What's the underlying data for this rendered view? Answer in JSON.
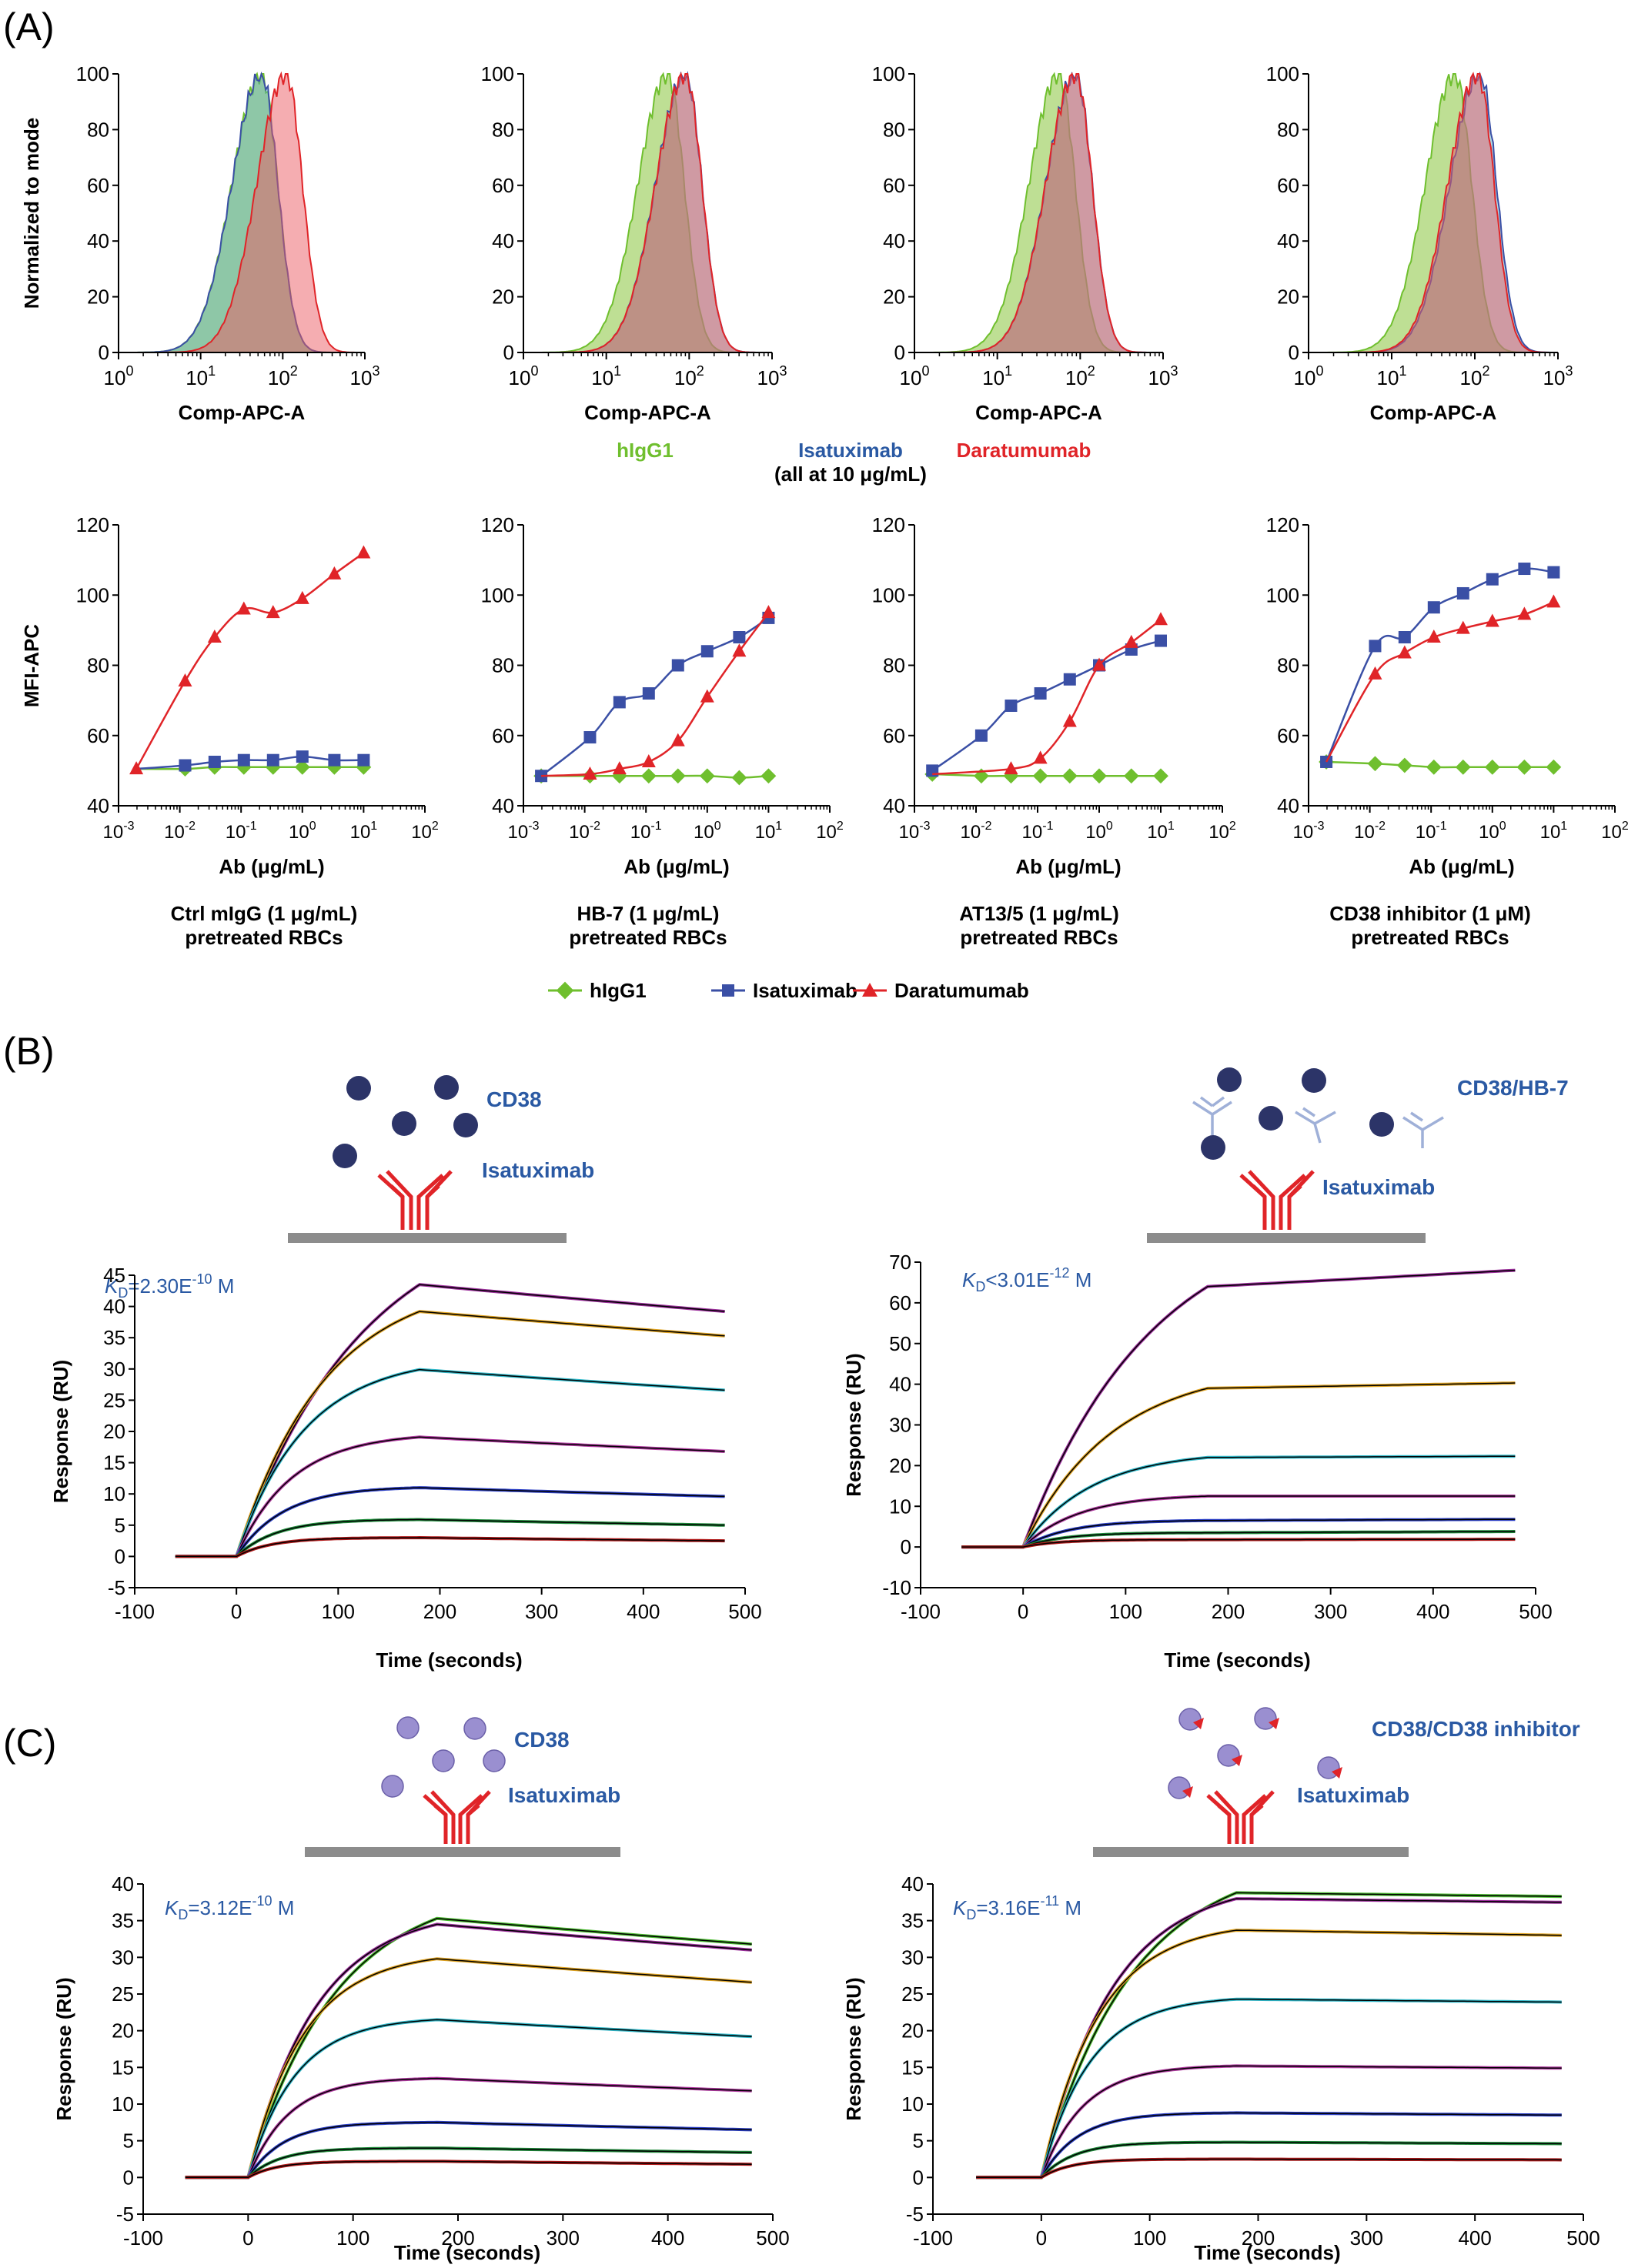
{
  "colors": {
    "hlgg1": "#6fbf2e",
    "isatuximab": "#3a4fa5",
    "daratumumab": "#e02428",
    "label_blue": "#2a59a3",
    "particle_dark": "#2c3468",
    "particle_light": "#9a8fd0",
    "antibody_light": "#9fb0d8",
    "surface": "#8c8c8c"
  },
  "panel_a": {
    "label": "(A)",
    "hist_ylabel": "Normalized to mode",
    "hist_xlabel": "Comp-APC-A",
    "hist_legend": {
      "hlgg1": "hIgG1",
      "isatuximab": "Isatuximab",
      "note": "(all at 10 μg/mL)",
      "daratumumab": "Daratumumab"
    },
    "dose_ylabel": "MFI-APC",
    "dose_xlabel": "Ab (μg/mL)",
    "captions": [
      [
        "Ctrl mIgG (1 μg/mL)",
        "pretreated RBCs"
      ],
      [
        "HB-7 (1 μg/mL)",
        "pretreated RBCs"
      ],
      [
        "AT13/5 (1 μg/mL)",
        "pretreated RBCs"
      ],
      [
        "CD38 inhibitor (1 μM)",
        "pretreated RBCs"
      ]
    ],
    "dose_legend": [
      "hIgG1",
      "Isatuximab",
      "Daratumumab"
    ]
  },
  "panel_b": {
    "label": "(B)",
    "left": {
      "particle_label": "CD38",
      "antibody_label": "Isatuximab",
      "kd_prefix": "K",
      "kd_sub": "D",
      "kd_text": "=2.30E",
      "kd_exp": "-10",
      "kd_unit": " M"
    },
    "right": {
      "particle_label": "CD38/HB-7",
      "antibody_label": "Isatuximab",
      "kd_prefix": "K",
      "kd_sub": "D",
      "kd_text": "<3.01E",
      "kd_exp": "-12",
      "kd_unit": " M"
    }
  },
  "panel_c": {
    "label": "(C)",
    "left": {
      "particle_label": "CD38",
      "antibody_label": "Isatuximab",
      "kd_prefix": "K",
      "kd_sub": "D",
      "kd_text": "=3.12E",
      "kd_exp": "-10",
      "kd_unit": " M"
    },
    "right": {
      "particle_label": "CD38/CD38 inhibitor",
      "antibody_label": "Isatuximab",
      "kd_prefix": "K",
      "kd_sub": "D",
      "kd_text": "=3.16E",
      "kd_exp": "-11",
      "kd_unit": " M"
    }
  },
  "spr_axis": {
    "ylabel": "Response (RU)",
    "xlabel": "Time (seconds)"
  },
  "chart_data": [
    {
      "type": "area",
      "id": "hist1",
      "xscale": "log",
      "xlim": [
        1,
        1000
      ],
      "ylim": [
        0,
        100
      ],
      "xticks": [
        1,
        10,
        100,
        1000
      ],
      "yticks": [
        0,
        20,
        40,
        60,
        80,
        100
      ],
      "ylabel": "Normalized to mode",
      "xlabel": "Comp-APC-A",
      "series": [
        {
          "name": "hIgG1",
          "peak": 55
        },
        {
          "name": "Isatuximab",
          "peak": 55
        },
        {
          "name": "Daratumumab",
          "peak": 110
        }
      ]
    },
    {
      "type": "area",
      "id": "hist2",
      "xscale": "log",
      "xlim": [
        1,
        1000
      ],
      "ylim": [
        0,
        100
      ],
      "xticks": [
        1,
        10,
        100,
        1000
      ],
      "yticks": [
        0,
        20,
        40,
        60,
        80,
        100
      ],
      "xlabel": "Comp-APC-A",
      "series": [
        {
          "name": "hIgG1",
          "peak": 55
        },
        {
          "name": "Isatuximab",
          "peak": 90
        },
        {
          "name": "Daratumumab",
          "peak": 90
        }
      ]
    },
    {
      "type": "area",
      "id": "hist3",
      "xscale": "log",
      "xlim": [
        1,
        1000
      ],
      "ylim": [
        0,
        100
      ],
      "xticks": [
        1,
        10,
        100,
        1000
      ],
      "yticks": [
        0,
        20,
        40,
        60,
        80,
        100
      ],
      "xlabel": "Comp-APC-A",
      "series": [
        {
          "name": "hIgG1",
          "peak": 55
        },
        {
          "name": "Isatuximab",
          "peak": 88
        },
        {
          "name": "Daratumumab",
          "peak": 88
        }
      ]
    },
    {
      "type": "area",
      "id": "hist4",
      "xscale": "log",
      "xlim": [
        1,
        1000
      ],
      "ylim": [
        0,
        100
      ],
      "xticks": [
        1,
        10,
        100,
        1000
      ],
      "yticks": [
        0,
        20,
        40,
        60,
        80,
        100
      ],
      "xlabel": "Comp-APC-A",
      "series": [
        {
          "name": "hIgG1",
          "peak": 58
        },
        {
          "name": "Isatuximab",
          "peak": 115
        },
        {
          "name": "Daratumumab",
          "peak": 108
        }
      ]
    },
    {
      "type": "scatter",
      "id": "dose1",
      "xscale": "log",
      "xlim": [
        0.001,
        100
      ],
      "ylim": [
        40,
        120
      ],
      "xticks": [
        0.001,
        0.01,
        0.1,
        1,
        10,
        100
      ],
      "yticks": [
        40,
        60,
        80,
        100,
        120
      ],
      "ylabel": "MFI-APC",
      "xlabel": "Ab (μg/mL)",
      "x": [
        0.00195,
        0.0122,
        0.037,
        0.111,
        0.333,
        1,
        3.33,
        10
      ],
      "series": [
        {
          "name": "hIgG1",
          "values": [
            null,
            50.5,
            51,
            51,
            51,
            51,
            51,
            51
          ]
        },
        {
          "name": "Isatuximab",
          "values": [
            null,
            51.5,
            52.5,
            53,
            53,
            54,
            53,
            53
          ]
        },
        {
          "name": "Daratumumab",
          "values": [
            50.5,
            75.5,
            88,
            96,
            95,
            99,
            106,
            112
          ]
        }
      ]
    },
    {
      "type": "scatter",
      "id": "dose2",
      "xscale": "log",
      "xlim": [
        0.001,
        100
      ],
      "ylim": [
        40,
        120
      ],
      "xticks": [
        0.001,
        0.01,
        0.1,
        1,
        10,
        100
      ],
      "yticks": [
        40,
        60,
        80,
        100,
        120
      ],
      "xlabel": "Ab (μg/mL)",
      "x": [
        0.00195,
        0.0122,
        0.037,
        0.111,
        0.333,
        1,
        3.33,
        10
      ],
      "series": [
        {
          "name": "hIgG1",
          "values": [
            48.5,
            48.5,
            48.5,
            48.5,
            48.5,
            48.5,
            48,
            48.5
          ]
        },
        {
          "name": "Isatuximab",
          "values": [
            48.5,
            59.5,
            69.5,
            72,
            80,
            84,
            88,
            93.5
          ]
        },
        {
          "name": "Daratumumab",
          "values": [
            null,
            49,
            50.5,
            52.5,
            58.5,
            71,
            84,
            95
          ]
        }
      ]
    },
    {
      "type": "scatter",
      "id": "dose3",
      "xscale": "log",
      "xlim": [
        0.001,
        100
      ],
      "ylim": [
        40,
        120
      ],
      "xticks": [
        0.001,
        0.01,
        0.1,
        1,
        10,
        100
      ],
      "yticks": [
        40,
        60,
        80,
        100,
        120
      ],
      "xlabel": "Ab (μg/mL)",
      "x": [
        0.00195,
        0.0122,
        0.037,
        0.111,
        0.333,
        1,
        3.33,
        10
      ],
      "series": [
        {
          "name": "hIgG1",
          "values": [
            49,
            48.5,
            48.5,
            48.5,
            48.5,
            48.5,
            48.5,
            48.5
          ]
        },
        {
          "name": "Isatuximab",
          "values": [
            50,
            60,
            68.5,
            72,
            76,
            80,
            84.5,
            87
          ]
        },
        {
          "name": "Daratumumab",
          "values": [
            null,
            null,
            50.5,
            53.5,
            64,
            80,
            86.5,
            93
          ]
        }
      ]
    },
    {
      "type": "scatter",
      "id": "dose4",
      "xscale": "log",
      "xlim": [
        0.001,
        100
      ],
      "ylim": [
        40,
        120
      ],
      "xticks": [
        0.001,
        0.01,
        0.1,
        1,
        10,
        100
      ],
      "yticks": [
        40,
        60,
        80,
        100,
        120
      ],
      "xlabel": "Ab (μg/mL)",
      "x": [
        0.00195,
        0.0122,
        0.037,
        0.111,
        0.333,
        1,
        3.33,
        10
      ],
      "series": [
        {
          "name": "hIgG1",
          "values": [
            52.5,
            52,
            51.5,
            51,
            51,
            51,
            51,
            51
          ]
        },
        {
          "name": "Isatuximab",
          "values": [
            52.5,
            85.5,
            88,
            96.5,
            100.5,
            104.5,
            107.5,
            106.5
          ]
        },
        {
          "name": "Daratumumab",
          "values": [
            null,
            77.5,
            83.5,
            88,
            90.5,
            92.5,
            94.5,
            98
          ]
        }
      ]
    },
    {
      "type": "line",
      "id": "sprB1",
      "xlim": [
        -100,
        500
      ],
      "ylim": [
        -5,
        45
      ],
      "xticks": [
        -100,
        0,
        100,
        200,
        300,
        400,
        500
      ],
      "yticks": [
        -5,
        0,
        5,
        10,
        15,
        20,
        25,
        30,
        35,
        40,
        45
      ],
      "ylabel": "Response (RU)",
      "xlabel": "Time (seconds)",
      "series": [
        {
          "name": "",
          "plateau": 43.5,
          "end": 39.2,
          "color": "#9b2e9b"
        },
        {
          "name": "",
          "plateau": 39.2,
          "end": 35.3,
          "color": "#e0a320"
        },
        {
          "name": "",
          "plateau": 29.9,
          "end": 26.6,
          "color": "#2fb7c8"
        },
        {
          "name": "",
          "plateau": 19.1,
          "end": 16.8,
          "color": "#b03aa0"
        },
        {
          "name": "",
          "plateau": 11,
          "end": 9.6,
          "color": "#2a3ec4"
        },
        {
          "name": "",
          "plateau": 5.9,
          "end": 5,
          "color": "#1e8a3a"
        },
        {
          "name": "",
          "plateau": 3,
          "end": 2.5,
          "color": "#b01a1a"
        }
      ]
    },
    {
      "type": "line",
      "id": "sprB2",
      "xlim": [
        -100,
        500
      ],
      "ylim": [
        -10,
        70
      ],
      "xticks": [
        -100,
        0,
        100,
        200,
        300,
        400,
        500
      ],
      "yticks": [
        -10,
        0,
        10,
        20,
        30,
        40,
        50,
        60,
        70
      ],
      "ylabel": "Response (RU)",
      "xlabel": "Time (seconds)",
      "series": [
        {
          "name": "",
          "plateau": 64,
          "end": 68,
          "color": "#9b2e9b"
        },
        {
          "name": "",
          "plateau": 39,
          "end": 40.3,
          "color": "#e0a320"
        },
        {
          "name": "",
          "plateau": 22,
          "end": 22.3,
          "color": "#2fb7c8"
        },
        {
          "name": "",
          "plateau": 12.5,
          "end": 12.5,
          "color": "#b03aa0"
        },
        {
          "name": "",
          "plateau": 6.5,
          "end": 6.8,
          "color": "#2a3ec4"
        },
        {
          "name": "",
          "plateau": 3.5,
          "end": 3.8,
          "color": "#1e8a3a"
        },
        {
          "name": "",
          "plateau": 1.8,
          "end": 1.9,
          "color": "#b01a1a"
        }
      ]
    },
    {
      "type": "line",
      "id": "sprC1",
      "xlim": [
        -100,
        500
      ],
      "ylim": [
        -5,
        40
      ],
      "xticks": [
        -100,
        0,
        100,
        200,
        300,
        400,
        500
      ],
      "yticks": [
        -5,
        0,
        5,
        10,
        15,
        20,
        25,
        30,
        35,
        40
      ],
      "ylabel": "Response (RU)",
      "xlabel": "Time (seconds)",
      "series": [
        {
          "name": "",
          "plateau": 35.3,
          "end": 31.8,
          "color": "#48b82e"
        },
        {
          "name": "",
          "plateau": 34.5,
          "end": 31,
          "color": "#9b2e9b"
        },
        {
          "name": "",
          "plateau": 29.8,
          "end": 26.6,
          "color": "#e0a320"
        },
        {
          "name": "",
          "plateau": 21.5,
          "end": 19.2,
          "color": "#2fb7c8"
        },
        {
          "name": "",
          "plateau": 13.5,
          "end": 11.8,
          "color": "#b03aa0"
        },
        {
          "name": "",
          "plateau": 7.5,
          "end": 6.5,
          "color": "#2a3ec4"
        },
        {
          "name": "",
          "plateau": 4,
          "end": 3.4,
          "color": "#1e8a3a"
        },
        {
          "name": "",
          "plateau": 2.2,
          "end": 1.8,
          "color": "#b01a1a"
        }
      ]
    },
    {
      "type": "line",
      "id": "sprC2",
      "xlim": [
        -100,
        500
      ],
      "ylim": [
        -5,
        40
      ],
      "xticks": [
        -100,
        0,
        100,
        200,
        300,
        400,
        500
      ],
      "yticks": [
        -5,
        0,
        5,
        10,
        15,
        20,
        25,
        30,
        35,
        40
      ],
      "ylabel": "Response (RU)",
      "xlabel": "Time (seconds)",
      "series": [
        {
          "name": "",
          "plateau": 38.8,
          "end": 38.3,
          "color": "#48b82e"
        },
        {
          "name": "",
          "plateau": 38,
          "end": 37.5,
          "color": "#9b2e9b"
        },
        {
          "name": "",
          "plateau": 33.7,
          "end": 33,
          "color": "#e0a320"
        },
        {
          "name": "",
          "plateau": 24.3,
          "end": 23.9,
          "color": "#2fb7c8"
        },
        {
          "name": "",
          "plateau": 15.2,
          "end": 14.9,
          "color": "#b03aa0"
        },
        {
          "name": "",
          "plateau": 8.8,
          "end": 8.5,
          "color": "#2a3ec4"
        },
        {
          "name": "",
          "plateau": 4.8,
          "end": 4.6,
          "color": "#1e8a3a"
        },
        {
          "name": "",
          "plateau": 2.5,
          "end": 2.4,
          "color": "#b01a1a"
        }
      ]
    }
  ]
}
